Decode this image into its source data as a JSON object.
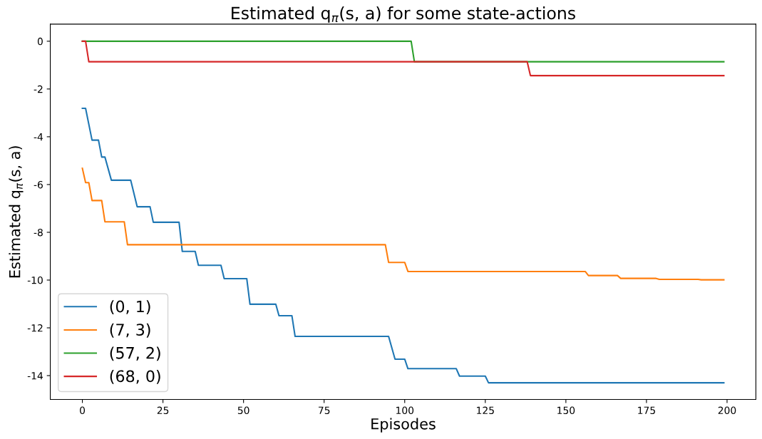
{
  "chart_data": {
    "type": "line",
    "title": "Estimated q$_{π}$(s, a) for some state-actions",
    "xlabel": "Episodes",
    "ylabel": "Estimated q$_{π}$(s, a)",
    "xlim": [
      -9.95,
      208.95
    ],
    "ylim": [
      -15.0,
      0.715
    ],
    "xticks": [
      0,
      25,
      50,
      75,
      100,
      125,
      150,
      175,
      200
    ],
    "yticks": [
      -14,
      -12,
      -10,
      -8,
      -6,
      -4,
      -2,
      0
    ],
    "grid": false,
    "legend": "bottom left",
    "series": [
      {
        "name": "(0, 1)",
        "color": "#1f77b4",
        "x": [
          0,
          1,
          3,
          5,
          6,
          7,
          9,
          15,
          17,
          21,
          22,
          30,
          31,
          35,
          36,
          43,
          44,
          51,
          52,
          60,
          61,
          65,
          66,
          95,
          97,
          100,
          101,
          116,
          117,
          125,
          126,
          199
        ],
        "values": [
          -2.81,
          -2.81,
          -4.14,
          -4.14,
          -4.85,
          -4.85,
          -5.82,
          -5.82,
          -6.93,
          -6.93,
          -7.58,
          -7.58,
          -8.8,
          -8.8,
          -9.38,
          -9.38,
          -9.94,
          -9.94,
          -11.01,
          -11.01,
          -11.49,
          -11.49,
          -12.36,
          -12.36,
          -13.31,
          -13.31,
          -13.71,
          -13.71,
          -14.02,
          -14.02,
          -14.3,
          -14.3
        ]
      },
      {
        "name": "(7, 3)",
        "color": "#ff7f0e",
        "x": [
          0,
          1,
          2,
          3,
          6,
          7,
          13,
          14,
          94,
          95,
          100,
          101,
          156,
          157,
          166,
          167,
          178,
          179,
          191,
          192,
          199
        ],
        "values": [
          -5.32,
          -5.92,
          -5.92,
          -6.67,
          -6.67,
          -7.56,
          -7.56,
          -8.52,
          -8.52,
          -9.26,
          -9.26,
          -9.64,
          -9.64,
          -9.81,
          -9.81,
          -9.93,
          -9.93,
          -9.97,
          -9.97,
          -9.99,
          -9.99
        ]
      },
      {
        "name": "(57, 2)",
        "color": "#2ca02c",
        "x": [
          0,
          102,
          103,
          199
        ],
        "values": [
          0,
          0,
          -0.86,
          -0.86
        ]
      },
      {
        "name": "(68, 0)",
        "color": "#d62728",
        "x": [
          0,
          1,
          2,
          138,
          139,
          199
        ],
        "values": [
          0,
          0,
          -0.86,
          -0.86,
          -1.44,
          -1.44
        ]
      }
    ]
  }
}
